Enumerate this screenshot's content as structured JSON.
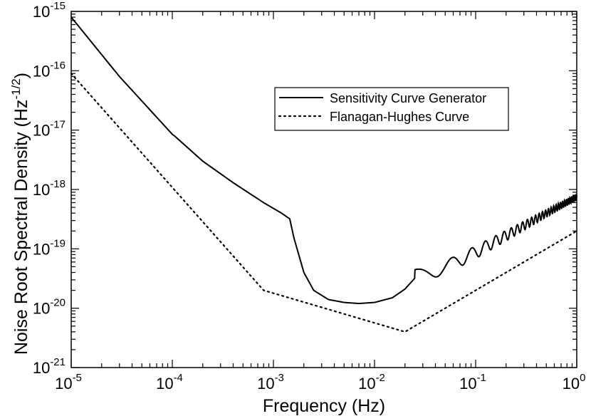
{
  "chart_data": {
    "type": "line",
    "title": "",
    "xlabel": "Frequency (Hz)",
    "ylabel_main": "Noise Root Spectral Density (Hz",
    "ylabel_sup": "-1/2",
    "ylabel_end": ")",
    "xscale": "log",
    "yscale": "log",
    "xlim": [
      1e-05,
      1
    ],
    "ylim": [
      1e-21,
      1e-15
    ],
    "x_ticks": [
      {
        "base": "10",
        "exp": "-5",
        "value": 1e-05
      },
      {
        "base": "10",
        "exp": "-4",
        "value": 0.0001
      },
      {
        "base": "10",
        "exp": "-3",
        "value": 0.001
      },
      {
        "base": "10",
        "exp": "-2",
        "value": 0.01
      },
      {
        "base": "10",
        "exp": "-1",
        "value": 0.1
      },
      {
        "base": "10",
        "exp": "0",
        "value": 1
      }
    ],
    "y_ticks": [
      {
        "base": "10",
        "exp": "-21",
        "value": 1e-21
      },
      {
        "base": "10",
        "exp": "-20",
        "value": 1e-20
      },
      {
        "base": "10",
        "exp": "-19",
        "value": 1e-19
      },
      {
        "base": "10",
        "exp": "-18",
        "value": 1e-18
      },
      {
        "base": "10",
        "exp": "-17",
        "value": 1e-17
      },
      {
        "base": "10",
        "exp": "-16",
        "value": 1e-16
      },
      {
        "base": "10",
        "exp": "-15",
        "value": 1e-15
      }
    ],
    "legend_position": "upper-right",
    "series": [
      {
        "name": "Sensitivity Curve Generator",
        "style": "solid",
        "color": "#000000",
        "x": [
          1e-05,
          3e-05,
          0.0001,
          0.000105,
          0.0002,
          0.0004,
          0.0008,
          0.0012,
          0.00145,
          0.0016,
          0.002,
          0.0025,
          0.0035,
          0.005,
          0.007,
          0.01,
          0.015,
          0.02,
          0.025
        ],
        "values": [
          8e-16,
          8e-17,
          8.5e-18,
          8e-18,
          3e-18,
          1.3e-18,
          6e-19,
          4e-19,
          3.2e-19,
          1.5e-19,
          4e-20,
          2e-20,
          1.4e-20,
          1.25e-20,
          1.2e-20,
          1.25e-20,
          1.5e-20,
          2.1e-20,
          3.2e-20
        ],
        "oscillation_start_hz": 0.025,
        "oscillation_period_hz": 0.0333,
        "trend_x": [
          0.025,
          0.05,
          0.1,
          0.2,
          0.5,
          1.0
        ],
        "trend_values": [
          3.5e-20,
          5e-20,
          9e-20,
          1.7e-19,
          4e-19,
          7.5e-19
        ],
        "oscillation_amplitude_fraction": [
          0.27,
          0.25,
          0.24,
          0.2,
          0.14,
          0.11
        ]
      },
      {
        "name": "Flanagan-Hughes Curve",
        "style": "dotted",
        "color": "#000000",
        "x": [
          1e-05,
          0.0008,
          0.02,
          1
        ],
        "values": [
          9e-17,
          2e-20,
          4e-21,
          2e-19
        ]
      }
    ]
  }
}
